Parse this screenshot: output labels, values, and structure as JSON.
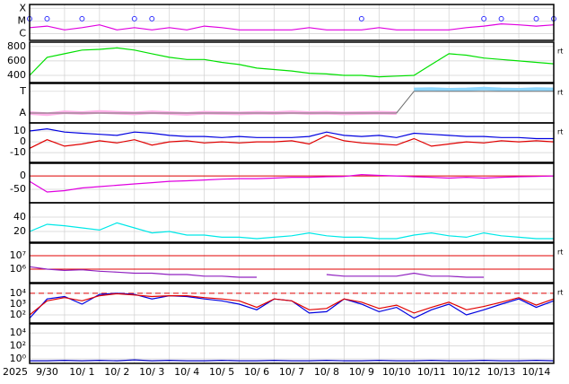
{
  "x_axis": {
    "year": "2025",
    "xlim": [
      0,
      15
    ],
    "labels": [
      "9/30",
      "10/ 1",
      "10/ 2",
      "10/ 3",
      "10/ 4",
      "10/ 5",
      "10/ 6",
      "10/ 7",
      "10/ 8",
      "10/ 9",
      "10/10",
      "10/11",
      "10/12",
      "10/13",
      "10/14"
    ]
  },
  "chart_data": [
    {
      "type": "line",
      "log": true,
      "ylim": [
        3e-07,
        0.0002
      ],
      "yticks": [
        {
          "value": 0.0001,
          "label": "X"
        },
        {
          "value": 1e-05,
          "label": "M"
        },
        {
          "value": 1e-06,
          "label": "C"
        }
      ],
      "x": [
        0,
        0.5,
        1,
        1.5,
        2,
        2.5,
        3,
        3.5,
        4,
        4.5,
        5,
        5.5,
        6,
        6.5,
        7,
        7.5,
        8,
        8.5,
        9,
        9.5,
        10,
        10.5,
        11,
        11.5,
        12,
        12.5,
        13,
        13.5,
        14,
        14.5,
        15
      ],
      "series": [
        {
          "color": "#e000e0",
          "values": [
            3e-06,
            4e-06,
            2e-06,
            3e-06,
            5e-06,
            2e-06,
            3e-06,
            2e-06,
            3e-06,
            2e-06,
            4e-06,
            3e-06,
            2e-06,
            2e-06,
            2e-06,
            2e-06,
            3e-06,
            2e-06,
            2e-06,
            2e-06,
            3e-06,
            2e-06,
            2e-06,
            2e-06,
            2e-06,
            3e-06,
            4e-06,
            6e-06,
            5e-06,
            4e-06,
            5e-06
          ]
        },
        {
          "color": "#3030ff",
          "marker": true,
          "values": [
            1.5e-05,
            1.5e-05,
            null,
            1.5e-05,
            null,
            null,
            1.5e-05,
            1.5e-05,
            null,
            null,
            null,
            null,
            null,
            null,
            null,
            null,
            null,
            null,
            null,
            1.5e-05,
            null,
            null,
            null,
            null,
            null,
            null,
            1.5e-05,
            1.5e-05,
            null,
            1.5e-05,
            1.5e-05
          ]
        }
      ]
    },
    {
      "type": "line",
      "right_label": "rt",
      "ylim": [
        300,
        860
      ],
      "yticks": [
        400,
        600,
        800
      ],
      "x": [
        0,
        0.5,
        1,
        1.5,
        2,
        2.5,
        3,
        3.5,
        4,
        4.5,
        5,
        5.5,
        6,
        6.5,
        7,
        7.5,
        8,
        8.5,
        9,
        9.5,
        10,
        10.5,
        11,
        11.5,
        12,
        12.5,
        13,
        13.5,
        14,
        14.5,
        15
      ],
      "series": [
        {
          "color": "#00e000",
          "values": [
            400,
            650,
            700,
            750,
            760,
            780,
            750,
            700,
            650,
            620,
            620,
            580,
            550,
            500,
            480,
            460,
            430,
            420,
            400,
            400,
            380,
            390,
            400,
            550,
            700,
            680,
            640,
            620,
            600,
            580,
            560
          ]
        }
      ]
    },
    {
      "type": "line",
      "right_label": "rt",
      "ylim": [
        0,
        1
      ],
      "yticks": [
        {
          "value": 0.8,
          "label": "T"
        },
        {
          "value": 0.25,
          "label": "A"
        }
      ],
      "x": [
        0,
        0.5,
        1,
        1.5,
        2,
        2.5,
        3,
        3.5,
        4,
        4.5,
        5,
        5.5,
        6,
        6.5,
        7,
        7.5,
        8,
        8.5,
        9,
        9.5,
        10,
        10.5,
        11,
        11.5,
        12,
        12.5,
        13,
        13.5,
        14,
        14.5,
        15
      ],
      "series": [
        {
          "color": "#ffb0e8",
          "width": 4,
          "values": [
            0.25,
            0.22,
            0.27,
            0.25,
            0.28,
            0.26,
            0.24,
            0.27,
            0.25,
            0.23,
            0.26,
            0.25,
            0.24,
            0.26,
            0.25,
            0.27,
            0.25,
            0.26,
            0.24,
            0.25,
            0.26,
            0.25,
            null,
            null,
            null,
            null,
            null,
            null,
            null,
            null,
            null
          ]
        },
        {
          "color": "#90d8ff",
          "width": 4,
          "values": [
            null,
            null,
            null,
            null,
            null,
            null,
            null,
            null,
            null,
            null,
            null,
            null,
            null,
            null,
            null,
            null,
            null,
            null,
            null,
            null,
            null,
            null,
            0.85,
            0.86,
            0.84,
            0.85,
            0.87,
            0.85,
            0.84,
            0.86,
            0.85
          ]
        },
        {
          "color": "#707070",
          "width": 1,
          "values": [
            0.25,
            0.25,
            0.25,
            0.25,
            0.25,
            0.25,
            0.25,
            0.25,
            0.25,
            0.25,
            0.25,
            0.25,
            0.25,
            0.25,
            0.25,
            0.25,
            0.25,
            0.25,
            0.25,
            0.25,
            0.25,
            0.25,
            0.8,
            0.8,
            0.8,
            0.8,
            0.8,
            0.8,
            0.8,
            0.8,
            0.8
          ]
        }
      ]
    },
    {
      "type": "line",
      "right_label": "rt",
      "ylim": [
        -19,
        17.5
      ],
      "yticks": [
        10,
        0,
        -10
      ],
      "x": [
        0,
        0.5,
        1,
        1.5,
        2,
        2.5,
        3,
        3.5,
        4,
        4.5,
        5,
        5.5,
        6,
        6.5,
        7,
        7.5,
        8,
        8.5,
        9,
        9.5,
        10,
        10.5,
        11,
        11.5,
        12,
        12.5,
        13,
        13.5,
        14,
        14.5,
        15
      ],
      "series": [
        {
          "color": "#0000e0",
          "values": [
            10,
            12,
            9,
            8,
            7,
            6,
            9,
            8,
            6,
            5,
            5,
            4,
            5,
            4,
            4,
            4,
            5,
            9,
            6,
            5,
            6,
            4,
            8,
            7,
            6,
            5,
            5,
            4,
            4,
            3,
            3
          ]
        },
        {
          "color": "#e00000",
          "values": [
            -6,
            2,
            -4,
            -2,
            1,
            -1,
            2,
            -3,
            0,
            1,
            -1,
            0,
            -1,
            0,
            0,
            1,
            -2,
            6,
            1,
            -1,
            -2,
            -3,
            3,
            -4,
            -2,
            0,
            -1,
            1,
            0,
            1,
            0
          ]
        }
      ]
    },
    {
      "type": "line",
      "ylim": [
        -100,
        47
      ],
      "yticks": [
        0,
        -50
      ],
      "ref_lines": [
        0
      ],
      "ref_color": "#e00000",
      "x": [
        0,
        0.5,
        1,
        1.5,
        2,
        2.5,
        3,
        3.5,
        4,
        4.5,
        5,
        5.5,
        6,
        6.5,
        7,
        7.5,
        8,
        8.5,
        9,
        9.5,
        10,
        10.5,
        11,
        11.5,
        12,
        12.5,
        13,
        13.5,
        14,
        14.5,
        15
      ],
      "series": [
        {
          "color": "#e000e0",
          "values": [
            -20,
            -60,
            -55,
            -45,
            -40,
            -35,
            -30,
            -25,
            -20,
            -18,
            -15,
            -12,
            -10,
            -10,
            -8,
            -5,
            -5,
            -3,
            -2,
            5,
            2,
            0,
            -3,
            -5,
            -8,
            -5,
            -8,
            -5,
            -3,
            -2,
            0
          ]
        }
      ]
    },
    {
      "type": "line",
      "ylim": [
        5,
        60
      ],
      "yticks": [
        40,
        20
      ],
      "x": [
        0,
        0.5,
        1,
        1.5,
        2,
        2.5,
        3,
        3.5,
        4,
        4.5,
        5,
        5.5,
        6,
        6.5,
        7,
        7.5,
        8,
        8.5,
        9,
        9.5,
        10,
        10.5,
        11,
        11.5,
        12,
        12.5,
        13,
        13.5,
        14,
        14.5,
        15
      ],
      "series": [
        {
          "color": "#00e8e8",
          "values": [
            20,
            30,
            28,
            25,
            22,
            32,
            25,
            18,
            20,
            15,
            15,
            12,
            12,
            10,
            12,
            14,
            18,
            14,
            12,
            12,
            10,
            10,
            15,
            18,
            14,
            12,
            18,
            14,
            12,
            10,
            10
          ]
        }
      ]
    },
    {
      "type": "line",
      "log": true,
      "right_label": "rt",
      "ylim": [
        100000,
        85000000
      ],
      "yticks": [
        {
          "value": 10000000,
          "label": "10⁷"
        },
        {
          "value": 1000000,
          "label": "10⁶"
        }
      ],
      "ref_lines": [
        10000000,
        1000000
      ],
      "ref_color": "#e00000",
      "x": [
        0,
        0.5,
        1,
        1.5,
        2,
        2.5,
        3,
        3.5,
        4,
        4.5,
        5,
        5.5,
        6,
        6.5,
        7,
        7.5,
        8,
        8.5,
        9,
        9.5,
        10,
        10.5,
        11,
        11.5,
        12,
        12.5,
        13,
        13.5,
        14,
        14.5,
        15
      ],
      "series": [
        {
          "color": "#9020c0",
          "values": [
            1500000,
            1000000,
            800000,
            900000,
            700000,
            600000,
            500000,
            500000,
            400000,
            400000,
            300000,
            300000,
            250000,
            250000,
            null,
            null,
            null,
            400000,
            300000,
            300000,
            300000,
            300000,
            500000,
            300000,
            300000,
            250000,
            250000,
            null,
            null,
            null,
            null
          ]
        }
      ]
    },
    {
      "type": "line",
      "log": true,
      "right_label": "rt",
      "ylim": [
        18,
        80000
      ],
      "yticks": [
        {
          "value": 10000,
          "label": "10⁴"
        },
        {
          "value": 1000,
          "label": "10³"
        },
        {
          "value": 100,
          "label": "10²"
        }
      ],
      "ref_lines": [
        10000
      ],
      "ref_color": "#e00000",
      "ref_dash": true,
      "x": [
        0,
        0.5,
        1,
        1.5,
        2,
        2.5,
        3,
        3.5,
        4,
        4.5,
        5,
        5.5,
        6,
        6.5,
        7,
        7.5,
        8,
        8.5,
        9,
        9.5,
        10,
        10.5,
        11,
        11.5,
        12,
        12.5,
        13,
        13.5,
        14,
        14.5,
        15
      ],
      "series": [
        {
          "color": "#0000e0",
          "values": [
            50,
            3000,
            5000,
            1000,
            8000,
            10000,
            8000,
            3000,
            6000,
            5000,
            3000,
            2000,
            1000,
            300,
            3000,
            2000,
            150,
            200,
            3000,
            1000,
            200,
            500,
            50,
            300,
            1000,
            100,
            300,
            1000,
            3000,
            500,
            2000
          ]
        },
        {
          "color": "#e00000",
          "values": [
            100,
            2000,
            4000,
            2000,
            6000,
            9000,
            7000,
            5000,
            6000,
            6000,
            4000,
            3000,
            2000,
            500,
            3000,
            2000,
            300,
            400,
            3000,
            1500,
            400,
            800,
            150,
            500,
            1500,
            300,
            600,
            1500,
            4000,
            800,
            3000
          ]
        }
      ]
    },
    {
      "type": "line",
      "log": true,
      "ylim": [
        0.2,
        250000
      ],
      "yticks": [
        {
          "value": 10000,
          "label": "10⁴"
        },
        {
          "value": 100,
          "label": "10²"
        },
        {
          "value": 1,
          "label": "10⁰"
        }
      ],
      "x": [
        0,
        0.5,
        1,
        1.5,
        2,
        2.5,
        3,
        3.5,
        4,
        4.5,
        5,
        5.5,
        6,
        6.5,
        7,
        7.5,
        8,
        8.5,
        9,
        9.5,
        10,
        10.5,
        11,
        11.5,
        12,
        12.5,
        13,
        13.5,
        14,
        14.5,
        15
      ],
      "series": [
        {
          "color": "#0000c0",
          "values": [
            0.5,
            0.5,
            0.6,
            0.5,
            0.6,
            0.5,
            0.7,
            0.5,
            0.6,
            0.5,
            0.5,
            0.6,
            0.5,
            0.5,
            0.6,
            0.5,
            0.5,
            0.6,
            0.5,
            0.5,
            0.6,
            0.5,
            0.5,
            0.6,
            0.5,
            0.5,
            0.6,
            0.5,
            0.5,
            0.6,
            0.5
          ]
        }
      ]
    }
  ]
}
